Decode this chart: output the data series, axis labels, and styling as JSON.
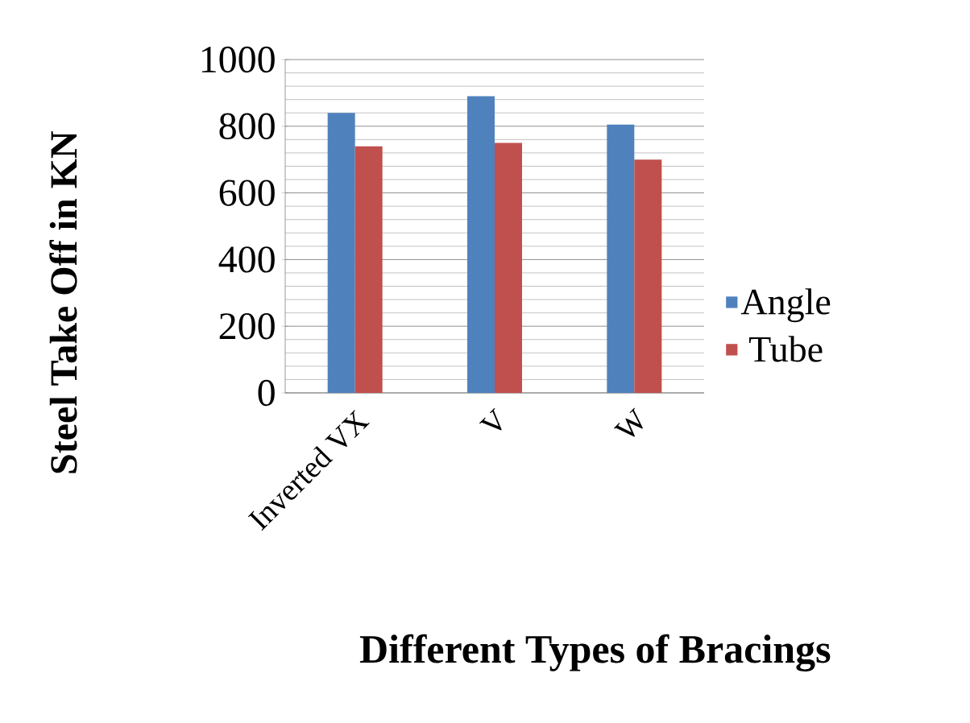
{
  "chart_data": {
    "type": "bar",
    "xlabel": "Different Types of Bracings",
    "ylabel": "Steel Take Off in KN",
    "categories": [
      "Inverted VX",
      "V",
      "W"
    ],
    "series": [
      {
        "name": "Angle",
        "color": "#4f81bd",
        "values": [
          840,
          890,
          805
        ]
      },
      {
        "name": "Tube",
        "color": "#c0504d",
        "values": [
          740,
          750,
          700
        ]
      }
    ],
    "ylim": [
      0,
      1000
    ],
    "yticks": [
      0,
      200,
      400,
      600,
      800,
      1000
    ],
    "grid": "y",
    "legend": "right"
  }
}
